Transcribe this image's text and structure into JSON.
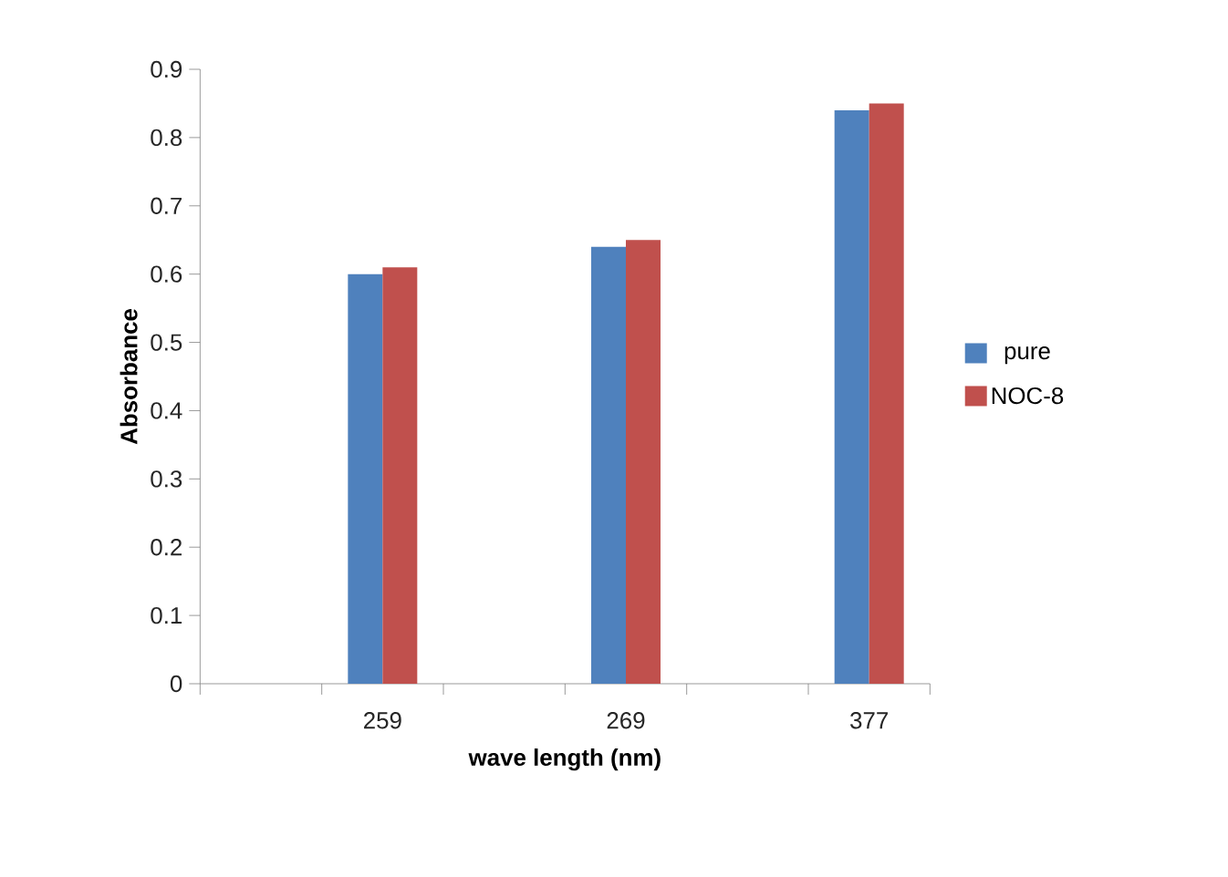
{
  "chart_data": {
    "type": "bar",
    "xlabel": "wave length (nm)",
    "ylabel": "Absorbance",
    "categories": [
      null,
      "259",
      null,
      "269",
      null,
      "377"
    ],
    "series": [
      {
        "name": "pure",
        "color": "#4f81bd",
        "values": [
          null,
          0.6,
          null,
          0.64,
          null,
          0.84
        ]
      },
      {
        "name": "NOC-8",
        "color": "#c0504d",
        "values": [
          null,
          0.61,
          null,
          0.65,
          null,
          0.85
        ]
      }
    ],
    "ylim": [
      0,
      0.9
    ],
    "yticks": [
      0,
      0.1,
      0.2,
      0.3,
      0.4,
      0.5,
      0.6,
      0.7,
      0.8,
      0.9
    ],
    "legend": "right"
  }
}
